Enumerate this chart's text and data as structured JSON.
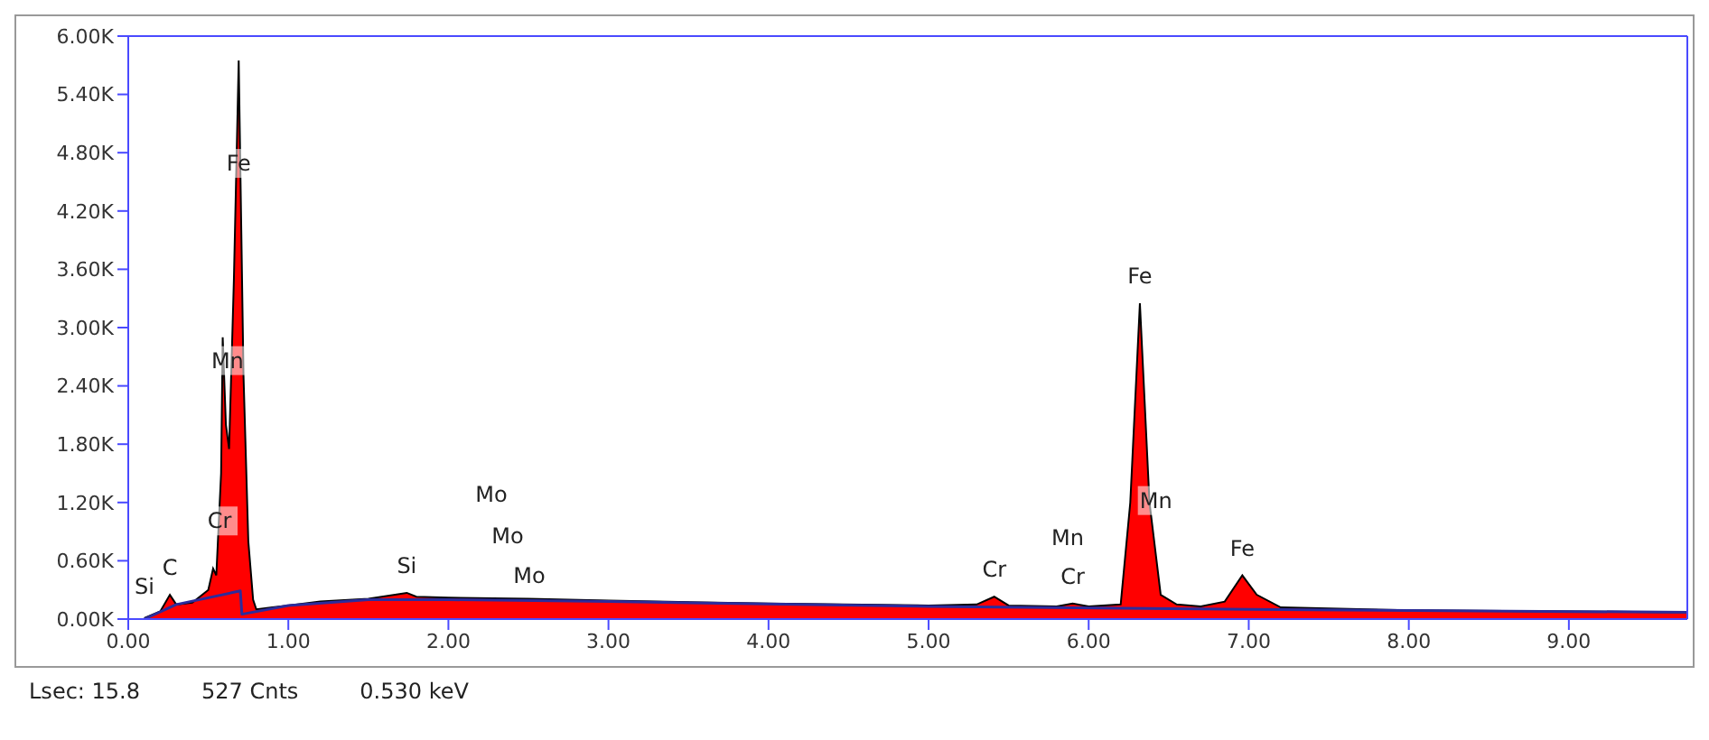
{
  "chart_data": {
    "type": "area",
    "xlim": [
      0,
      9.74
    ],
    "xticks": [
      {
        "value": 0,
        "label": "0.00"
      },
      {
        "value": 1,
        "label": "1.00"
      },
      {
        "value": 2,
        "label": "2.00"
      },
      {
        "value": 3,
        "label": "3.00"
      },
      {
        "value": 4,
        "label": "4.00"
      },
      {
        "value": 5,
        "label": "5.00"
      },
      {
        "value": 6,
        "label": "6.00"
      },
      {
        "value": 7,
        "label": "7.00"
      },
      {
        "value": 8,
        "label": "8.00"
      },
      {
        "value": 9,
        "label": "9.00"
      }
    ],
    "ylim": [
      0,
      6000
    ],
    "yticks": [
      {
        "value": 0,
        "label": "0.00K"
      },
      {
        "value": 600,
        "label": "0.60K"
      },
      {
        "value": 1200,
        "label": "1.20K"
      },
      {
        "value": 1800,
        "label": "1.80K"
      },
      {
        "value": 2400,
        "label": "2.40K"
      },
      {
        "value": 3000,
        "label": "3.00K"
      },
      {
        "value": 3600,
        "label": "3.60K"
      },
      {
        "value": 4200,
        "label": "4.20K"
      },
      {
        "value": 4800,
        "label": "4.80K"
      },
      {
        "value": 5400,
        "label": "5.40K"
      },
      {
        "value": 6000,
        "label": "6.00K"
      }
    ],
    "grid": false,
    "legend": false,
    "series": [
      {
        "color": "#ff0000",
        "x": [
          0.1,
          0.2,
          0.26,
          0.3,
          0.4,
          0.5,
          0.53,
          0.55,
          0.58,
          0.59,
          0.61,
          0.63,
          0.66,
          0.69,
          0.72,
          0.75,
          0.78,
          0.8,
          0.9,
          1.0,
          1.2,
          1.5,
          1.74,
          1.8,
          2.0,
          2.5,
          3.0,
          4.0,
          5.0,
          5.3,
          5.41,
          5.5,
          5.8,
          5.9,
          6.0,
          6.2,
          6.26,
          6.32,
          6.38,
          6.45,
          6.55,
          6.7,
          6.85,
          6.96,
          7.05,
          7.2,
          8.0,
          9.0,
          9.74
        ],
        "values": [
          10,
          80,
          250,
          150,
          170,
          300,
          520,
          450,
          1500,
          2900,
          2000,
          1750,
          3500,
          5750,
          2500,
          800,
          200,
          100,
          120,
          140,
          180,
          210,
          270,
          230,
          220,
          210,
          190,
          160,
          140,
          150,
          230,
          140,
          130,
          160,
          130,
          150,
          1200,
          3250,
          1200,
          250,
          150,
          130,
          180,
          450,
          250,
          120,
          90,
          80,
          70
        ]
      },
      {
        "type": "line",
        "color": "#2c2c9c",
        "x": [
          0.1,
          0.3,
          0.7,
          0.71,
          1.0,
          1.5,
          2.0,
          3.0,
          5.0,
          7.0,
          9.74
        ],
        "values": [
          0,
          150,
          290,
          50,
          140,
          200,
          200,
          180,
          130,
          100,
          70
        ]
      }
    ],
    "annotations": [
      {
        "text": "C",
        "x": 0.26,
        "y": 250
      },
      {
        "text": "Cr",
        "x": 0.57,
        "y": 1010
      },
      {
        "text": "Mn",
        "x": 0.62,
        "y": 2660
      },
      {
        "text": "Fe",
        "x": 0.69,
        "y": 4690
      },
      {
        "text": "Si",
        "x": 1.74,
        "y": 270
      },
      {
        "text": "Cr",
        "x": 5.41,
        "y": 230
      },
      {
        "text": "Cr",
        "x": 5.9,
        "y": 160
      },
      {
        "text": "Fe",
        "x": 6.32,
        "y": 3250
      },
      {
        "text": "Mn",
        "x": 6.42,
        "y": 1220
      },
      {
        "text": "Fe",
        "x": 6.96,
        "y": 450
      },
      "Si",
      "Mo",
      "Mo",
      "Mo",
      "Mn",
      "Lsec: 15.8",
      "527 Cnts",
      "0.530 keV"
    ]
  }
}
